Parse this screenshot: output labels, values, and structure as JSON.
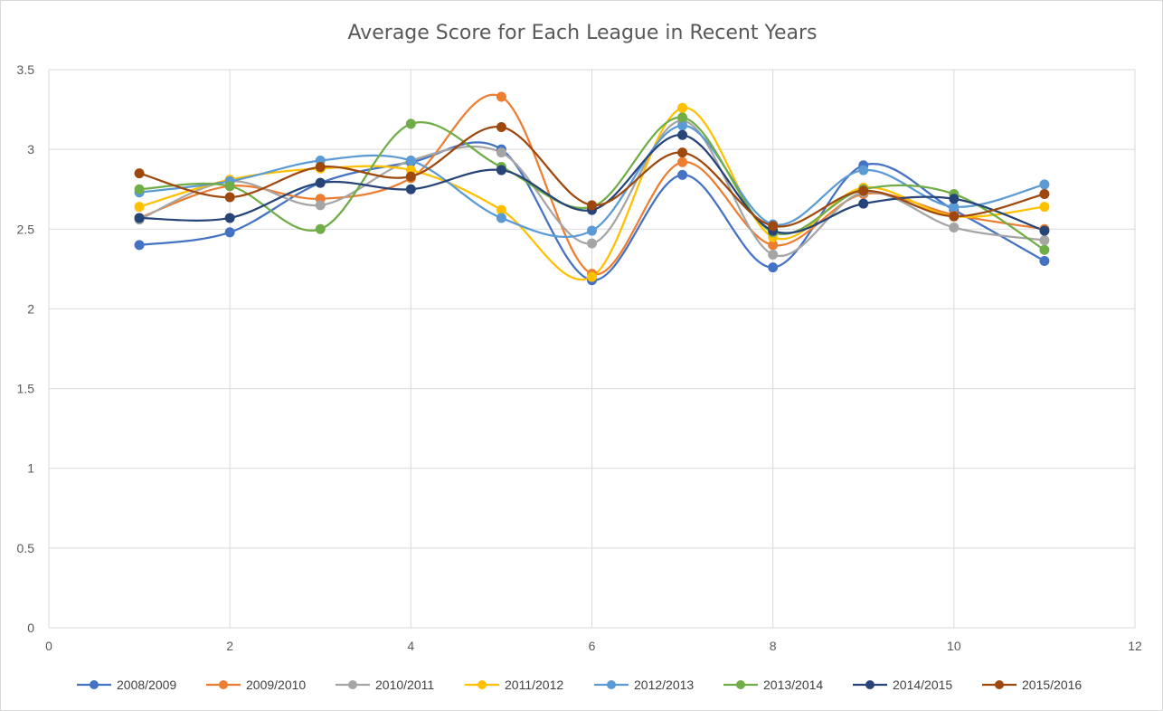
{
  "chart_data": {
    "type": "scatter",
    "title": "Average Score for Each League in Recent Years",
    "xlabel": "",
    "ylabel": "",
    "xlim": [
      0,
      12
    ],
    "ylim": [
      0,
      3.5
    ],
    "x_ticks": [
      "0",
      "2",
      "4",
      "6",
      "8",
      "10",
      "12"
    ],
    "y_ticks": [
      "0",
      "0.5",
      "1",
      "1.5",
      "2",
      "2.5",
      "3",
      "3.5"
    ],
    "grid": true,
    "smooth_lines": true,
    "legend_position": "bottom",
    "x": [
      1,
      2,
      3,
      4,
      5,
      6,
      7,
      8,
      9,
      10,
      11
    ],
    "series": [
      {
        "name": "2008/2009",
        "color": "#4472C4",
        "values": [
          2.4,
          2.48,
          2.79,
          2.92,
          3.0,
          2.18,
          2.84,
          2.26,
          2.9,
          2.62,
          2.3
        ]
      },
      {
        "name": "2009/2010",
        "color": "#ED7D31",
        "values": [
          2.57,
          2.77,
          2.69,
          2.82,
          3.33,
          2.22,
          2.92,
          2.4,
          2.72,
          2.59,
          2.5
        ]
      },
      {
        "name": "2010/2011",
        "color": "#A5A5A5",
        "values": [
          2.56,
          2.8,
          2.65,
          2.93,
          2.98,
          2.41,
          3.18,
          2.34,
          2.73,
          2.51,
          2.43
        ]
      },
      {
        "name": "2011/2012",
        "color": "#FFC000",
        "values": [
          2.64,
          2.81,
          2.88,
          2.87,
          2.62,
          2.2,
          3.26,
          2.45,
          2.76,
          2.58,
          2.64
        ]
      },
      {
        "name": "2012/2013",
        "color": "#5B9BD5",
        "values": [
          2.73,
          2.8,
          2.93,
          2.93,
          2.57,
          2.49,
          3.15,
          2.53,
          2.87,
          2.64,
          2.78
        ]
      },
      {
        "name": "2013/2014",
        "color": "#70AD47",
        "values": [
          2.75,
          2.77,
          2.5,
          3.16,
          2.89,
          2.64,
          3.2,
          2.48,
          2.75,
          2.72,
          2.37
        ]
      },
      {
        "name": "2014/2015",
        "color": "#264478",
        "values": [
          2.57,
          2.57,
          2.79,
          2.75,
          2.87,
          2.62,
          3.09,
          2.49,
          2.66,
          2.69,
          2.49
        ]
      },
      {
        "name": "2015/2016",
        "color": "#9E480E",
        "values": [
          2.85,
          2.7,
          2.89,
          2.83,
          3.14,
          2.65,
          2.98,
          2.52,
          2.74,
          2.58,
          2.72
        ]
      }
    ]
  }
}
